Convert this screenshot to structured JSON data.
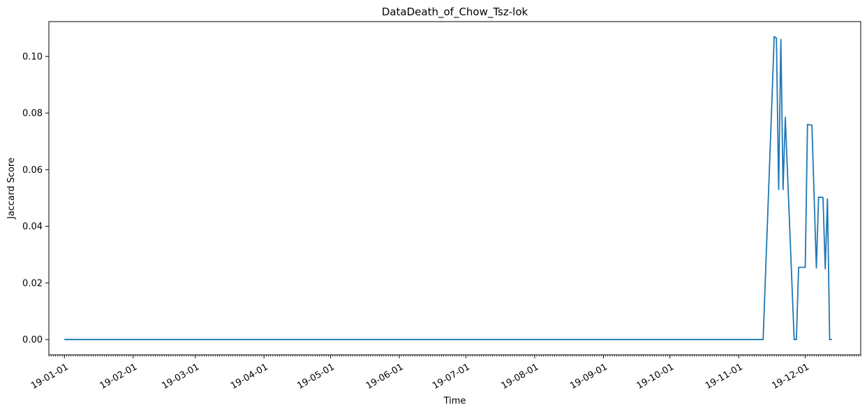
{
  "chart_data": {
    "type": "line",
    "title": "DataDeath_of_Chow_Tsz-lok",
    "xlabel": "Time",
    "ylabel": "Jaccard Score",
    "x_tick_labels": [
      "19-01-01",
      "19-02-01",
      "19-03-01",
      "19-04-01",
      "19-05-01",
      "19-06-01",
      "19-07-01",
      "19-08-01",
      "19-09-01",
      "19-10-01",
      "19-11-01",
      "19-12-01"
    ],
    "y_tick_labels": [
      "0.00",
      "0.02",
      "0.04",
      "0.06",
      "0.08",
      "0.10"
    ],
    "y_ticks": [
      0,
      0.02,
      0.04,
      0.06,
      0.08,
      0.1
    ],
    "ylim": [
      -0.0054,
      0.1123
    ],
    "xlim": [
      "2018-12-25",
      "2019-12-26"
    ],
    "grid": false,
    "series": [
      {
        "color": "#1f77b4",
        "points": [
          [
            "2019-01-01",
            0.0
          ],
          [
            "2019-11-12",
            0.0
          ],
          [
            "2019-11-16",
            0.085
          ],
          [
            "2019-11-17",
            0.107
          ],
          [
            "2019-11-18",
            0.1065
          ],
          [
            "2019-11-19",
            0.053
          ],
          [
            "2019-11-20",
            0.106
          ],
          [
            "2019-11-21",
            0.053
          ],
          [
            "2019-11-22",
            0.0785
          ],
          [
            "2019-11-26",
            0.0
          ],
          [
            "2019-11-27",
            0.0
          ],
          [
            "2019-11-28",
            0.0255
          ],
          [
            "2019-11-29",
            0.0255
          ],
          [
            "2019-12-01",
            0.0255
          ],
          [
            "2019-12-02",
            0.076
          ],
          [
            "2019-12-04",
            0.0757
          ],
          [
            "2019-12-06",
            0.0253
          ],
          [
            "2019-12-07",
            0.0503
          ],
          [
            "2019-12-09",
            0.0502
          ],
          [
            "2019-12-10",
            0.025
          ],
          [
            "2019-12-11",
            0.0497
          ],
          [
            "2019-12-12",
            0.0
          ],
          [
            "2019-12-13",
            0.0
          ]
        ]
      }
    ]
  }
}
